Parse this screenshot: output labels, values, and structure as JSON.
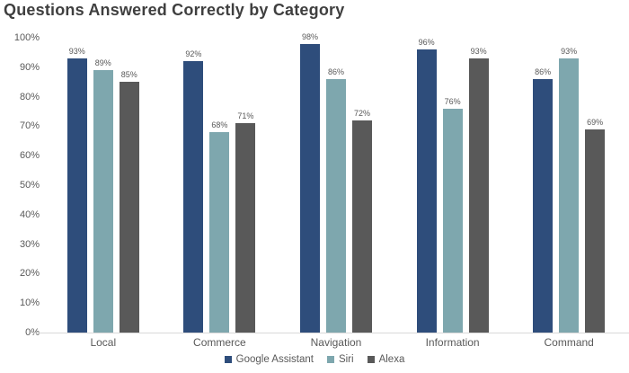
{
  "title": "Questions Answered Correctly by Category",
  "colors": {
    "title_text": "#3f3f3f",
    "axis_text": "#595959",
    "value_label_text": "#595959",
    "baseline": "#d9d9d9",
    "background": "#ffffff"
  },
  "chart_data": {
    "type": "bar",
    "title": "Questions Answered Correctly by Category",
    "categories": [
      "Local",
      "Commerce",
      "Navigation",
      "Information",
      "Command"
    ],
    "series": [
      {
        "name": "Google Assistant",
        "color": "#2E4D7B",
        "values": [
          93,
          92,
          98,
          96,
          86
        ]
      },
      {
        "name": "Siri",
        "color": "#7EA7AE",
        "values": [
          89,
          68,
          86,
          76,
          93
        ]
      },
      {
        "name": "Alexa",
        "color": "#595959",
        "values": [
          85,
          71,
          72,
          93,
          69
        ]
      }
    ],
    "value_label_suffix": "%",
    "xlabel": "",
    "ylabel": "",
    "ylim": [
      0,
      100
    ],
    "y_ticks": [
      "0%",
      "10%",
      "20%",
      "30%",
      "40%",
      "50%",
      "60%",
      "70%",
      "80%",
      "90%",
      "100%"
    ],
    "grid": false,
    "legend_position": "bottom"
  }
}
